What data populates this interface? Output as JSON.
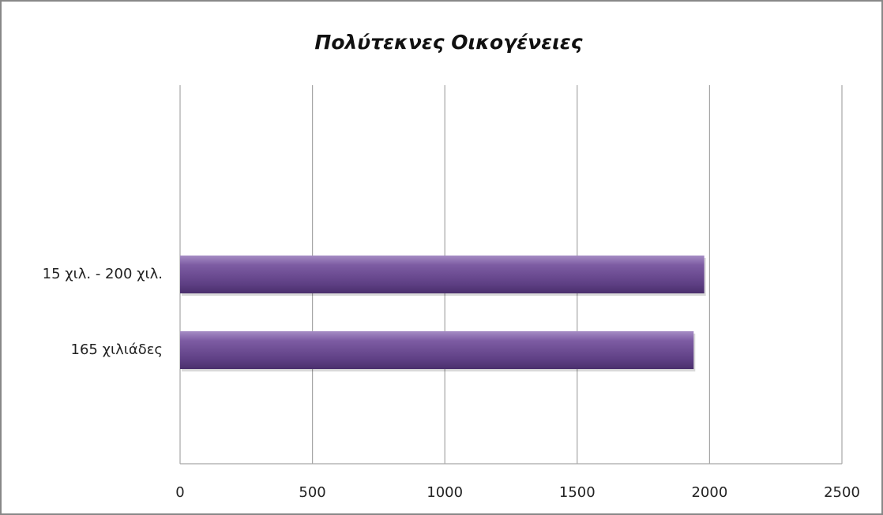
{
  "chart_data": {
    "type": "bar",
    "orientation": "horizontal",
    "title": "Πολύτεκνες Οικογένειες",
    "categories": [
      "15 χιλ. - 200 χιλ.",
      "165 χιλιάδες"
    ],
    "values": [
      1980,
      1940
    ],
    "color": "#6a4a8e",
    "xlim": [
      0,
      2500
    ],
    "xticks": [
      0,
      500,
      1000,
      1500,
      2000,
      2500
    ],
    "grid": true
  }
}
